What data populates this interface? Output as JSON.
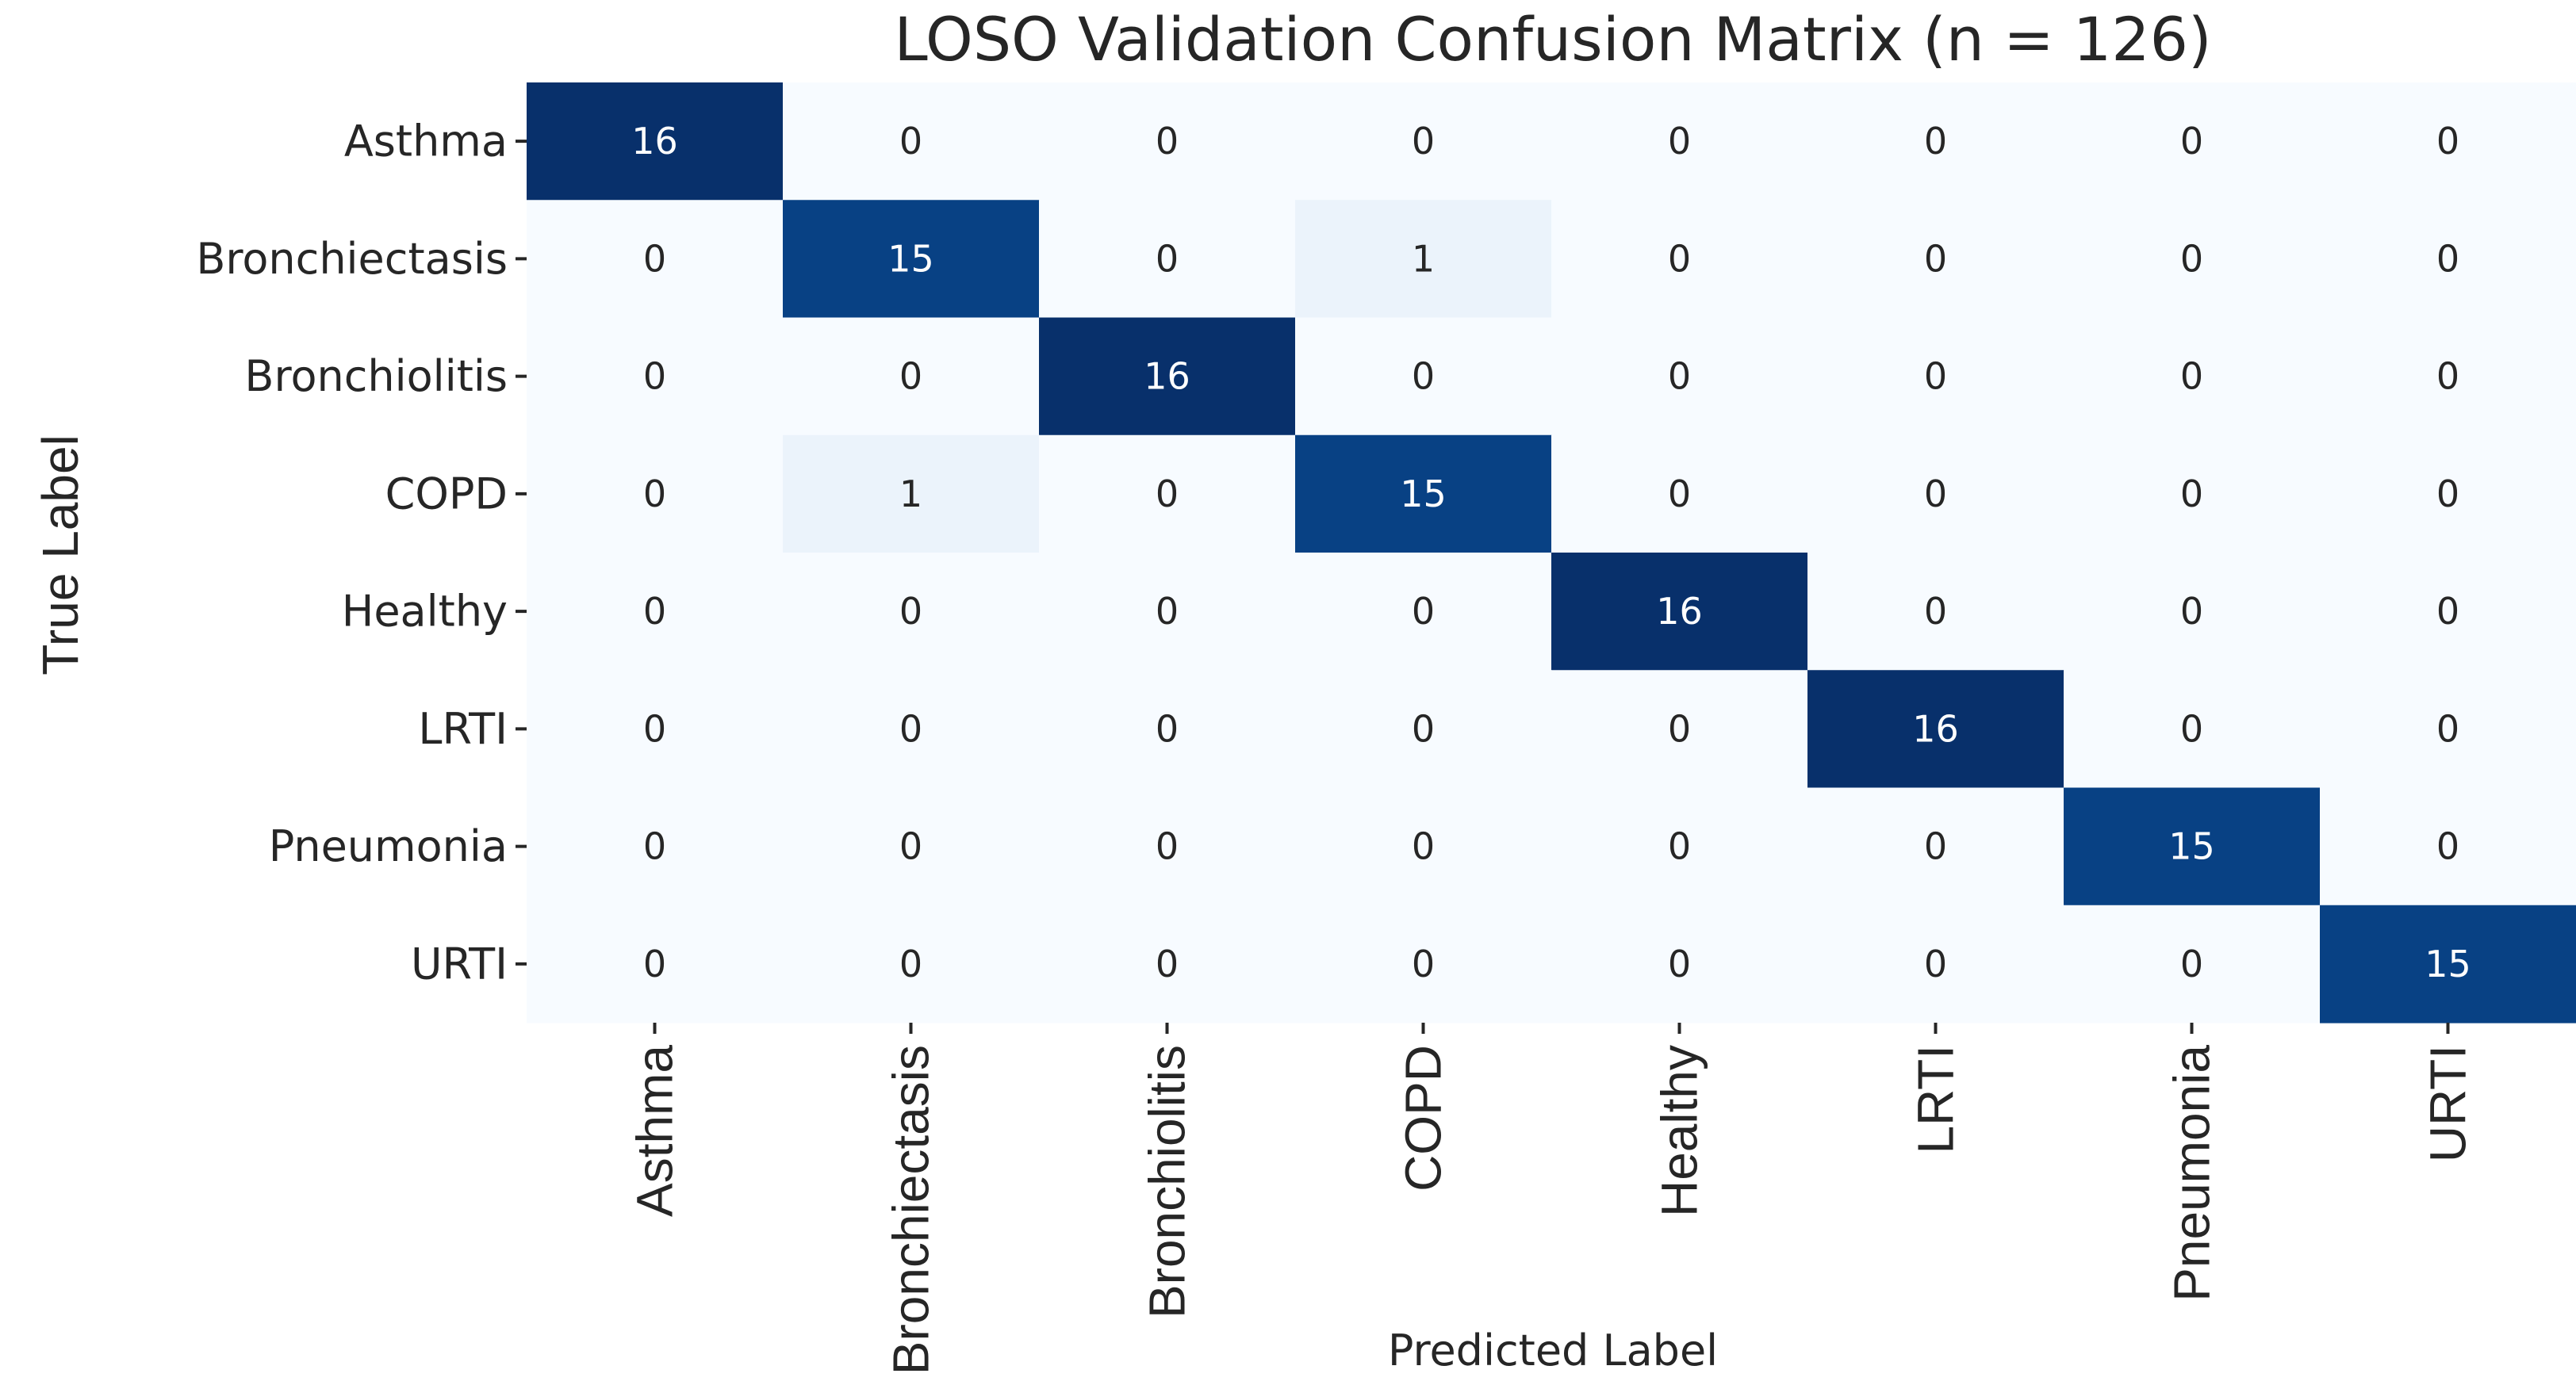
{
  "chart_data": {
    "type": "heatmap",
    "title": "LOSO Validation Confusion Matrix (n = 126)",
    "xlabel": "Predicted Label",
    "ylabel": "True Label",
    "row_labels": [
      "Asthma",
      "Bronchiectasis",
      "Bronchiolitis",
      "COPD",
      "Healthy",
      "LRTI",
      "Pneumonia",
      "URTI"
    ],
    "col_labels": [
      "Asthma",
      "Bronchiectasis",
      "Bronchiolitis",
      "COPD",
      "Healthy",
      "LRTI",
      "Pneumonia",
      "URTI"
    ],
    "values": [
      [
        16,
        0,
        0,
        0,
        0,
        0,
        0,
        0
      ],
      [
        0,
        15,
        0,
        1,
        0,
        0,
        0,
        0
      ],
      [
        0,
        0,
        16,
        0,
        0,
        0,
        0,
        0
      ],
      [
        0,
        1,
        0,
        15,
        0,
        0,
        0,
        0
      ],
      [
        0,
        0,
        0,
        0,
        16,
        0,
        0,
        0
      ],
      [
        0,
        0,
        0,
        0,
        0,
        16,
        0,
        0
      ],
      [
        0,
        0,
        0,
        0,
        0,
        0,
        15,
        0
      ],
      [
        0,
        0,
        0,
        0,
        0,
        0,
        0,
        15
      ]
    ],
    "colormap": "Blues",
    "value_range": [
      0,
      16
    ],
    "colorbar": false,
    "grid": false
  }
}
